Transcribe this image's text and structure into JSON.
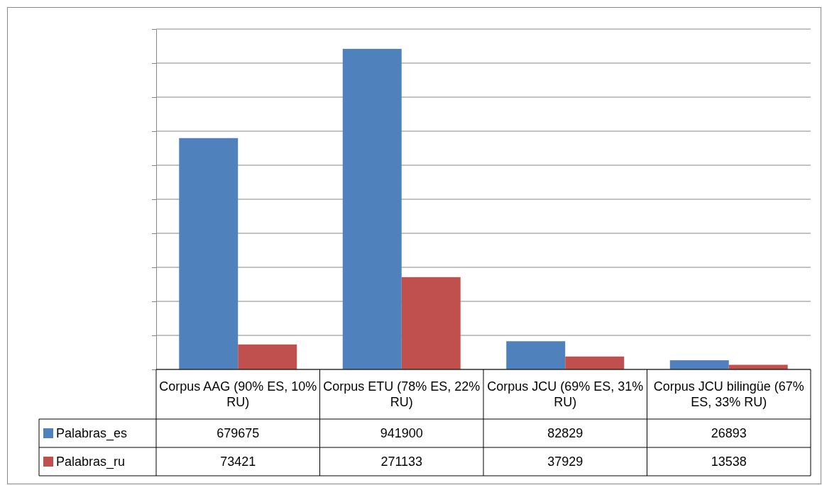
{
  "chart_data": {
    "type": "bar",
    "categories": [
      "Corpus AAG (90% ES, 10% RU)",
      "Corpus ETU (78% ES, 22% RU)",
      "Corpus JCU (69% ES, 31% RU)",
      "Corpus JCU bilingüe (67% ES, 33% RU)"
    ],
    "series": [
      {
        "name": "Palabras_es",
        "color": "#4f81bd",
        "values": [
          679675,
          941900,
          82829,
          26893
        ]
      },
      {
        "name": "Palabras_ru",
        "color": "#c0504d",
        "values": [
          73421,
          271133,
          37929,
          13538
        ]
      }
    ],
    "ylim": [
      0,
      1000000
    ],
    "yticks": [
      {
        "value": 0,
        "label": null
      },
      {
        "value": 100000,
        "label": null
      },
      {
        "value": 200000,
        "label": null
      },
      {
        "value": 300000,
        "label": null
      },
      {
        "value": 400000,
        "label": null
      },
      {
        "value": 500000,
        "label": null
      },
      {
        "value": 600000,
        "label": null
      },
      {
        "value": 700000,
        "label": null
      },
      {
        "value": 800000,
        "label": null
      },
      {
        "value": 900000,
        "label": null
      },
      {
        "value": 1000000,
        "label": null
      }
    ],
    "grid": true,
    "data_labels": true,
    "legend": "bottom left"
  }
}
